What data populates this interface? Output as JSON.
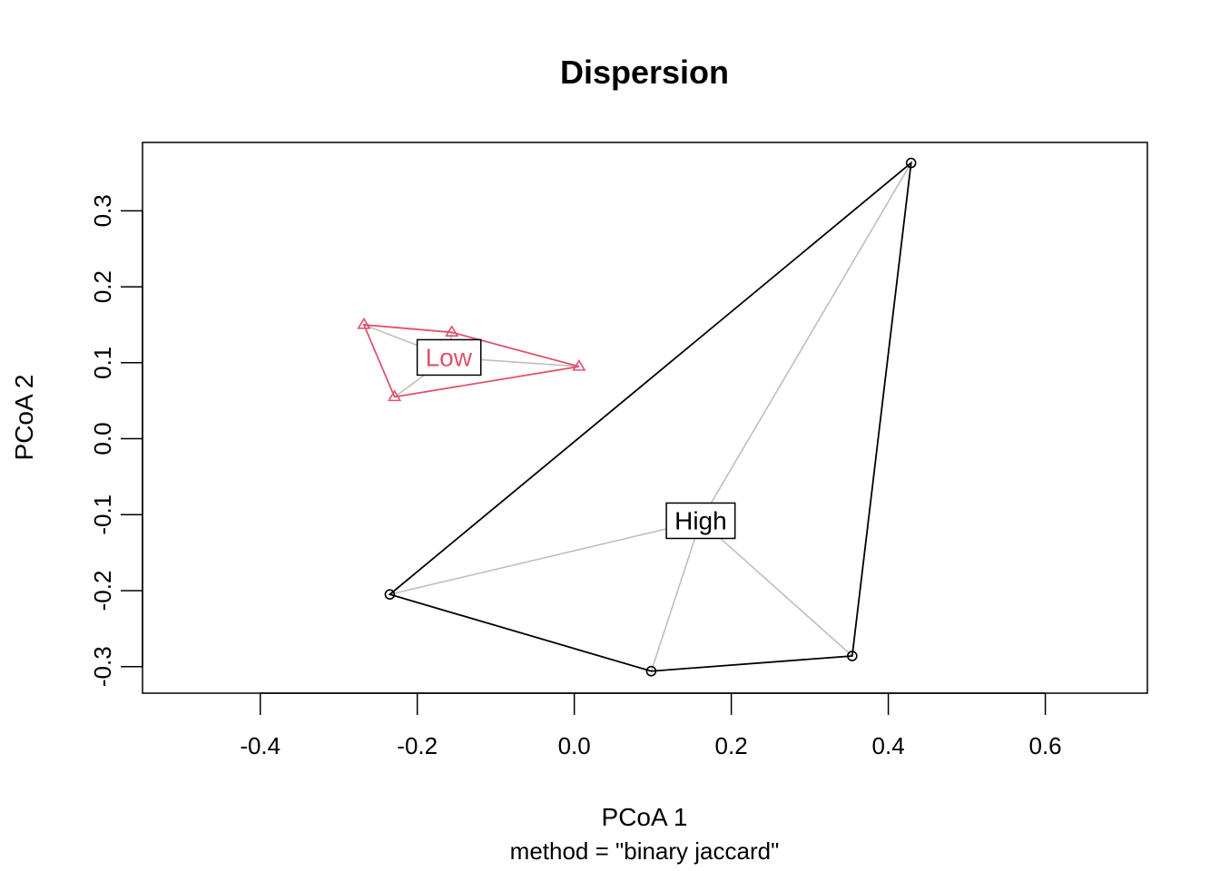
{
  "chart_data": {
    "type": "scatter",
    "title": "Dispersion",
    "xlabel": "PCoA 1",
    "ylabel": "PCoA 2",
    "subtitle": "method = \"binary jaccard\"",
    "xlim": [
      -0.55,
      0.73
    ],
    "ylim": [
      -0.335,
      0.39
    ],
    "xticks": [
      -0.4,
      -0.2,
      0.0,
      0.2,
      0.4,
      0.6
    ],
    "xtick_labels": [
      "-0.4",
      "-0.2",
      "0.0",
      "0.2",
      "0.4",
      "0.6"
    ],
    "yticks": [
      -0.3,
      -0.2,
      -0.1,
      0.0,
      0.1,
      0.2,
      0.3
    ],
    "ytick_labels": [
      "-0.3",
      "-0.2",
      "-0.1",
      "0.0",
      "0.1",
      "0.2",
      "0.3"
    ],
    "grid": false,
    "series": [
      {
        "name": "Low",
        "color": "#DF536B",
        "marker": "triangle",
        "points": [
          {
            "x": -0.268,
            "y": 0.15
          },
          {
            "x": -0.156,
            "y": 0.14
          },
          {
            "x": 0.006,
            "y": 0.095
          },
          {
            "x": -0.229,
            "y": 0.055
          }
        ],
        "hull_order": [
          0,
          1,
          2,
          3
        ],
        "centroid": {
          "x": -0.16,
          "y": 0.107
        }
      },
      {
        "name": "High",
        "color": "#000000",
        "marker": "circle",
        "points": [
          {
            "x": 0.429,
            "y": 0.363
          },
          {
            "x": -0.235,
            "y": -0.205
          },
          {
            "x": 0.098,
            "y": -0.306
          },
          {
            "x": 0.354,
            "y": -0.286
          }
        ],
        "hull_order": [
          0,
          1,
          2,
          3
        ],
        "centroid": {
          "x": 0.161,
          "y": -0.108
        }
      }
    ],
    "spider_color": "#BEBEBE"
  }
}
